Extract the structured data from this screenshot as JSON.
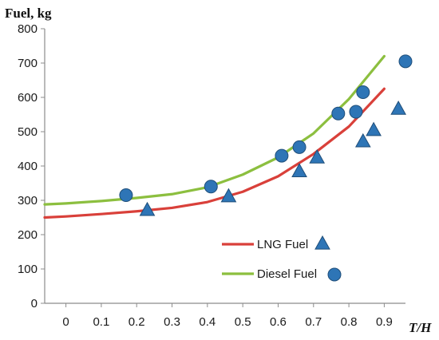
{
  "chart_data": {
    "type": "line",
    "title": "",
    "ylabel": "Fuel, kg",
    "xlabel": "T/H",
    "ylim": [
      0,
      800
    ],
    "xlim": [
      -0.06,
      0.96
    ],
    "yticks": [
      0,
      100,
      200,
      300,
      400,
      500,
      600,
      700,
      800
    ],
    "xticks": [
      0,
      0.1,
      0.2,
      0.3,
      0.4,
      0.5,
      0.6,
      0.7,
      0.8,
      0.9
    ],
    "xtick_labels": [
      "0",
      "0.1",
      "0.2",
      "0.3",
      "0.4",
      "0.5",
      "0.6",
      "0.7",
      "0.8",
      "0.9"
    ],
    "grid": false,
    "legend_position": "bottom-right",
    "lines": [
      {
        "color": "#d9403a",
        "x": [
          -0.06,
          0.0,
          0.1,
          0.2,
          0.3,
          0.4,
          0.5,
          0.6,
          0.7,
          0.8,
          0.9
        ],
        "y": [
          250,
          253,
          260,
          268,
          278,
          295,
          325,
          370,
          435,
          515,
          625
        ]
      },
      {
        "color": "#8cbf3f",
        "x": [
          -0.06,
          0.0,
          0.1,
          0.2,
          0.3,
          0.4,
          0.5,
          0.6,
          0.7,
          0.8,
          0.9
        ],
        "y": [
          288,
          291,
          298,
          307,
          318,
          338,
          375,
          425,
          495,
          595,
          720
        ]
      }
    ],
    "markers": [
      {
        "shape": "triangle",
        "color": "#2e75b6",
        "x": [
          0.23,
          0.46,
          0.66,
          0.71,
          0.84,
          0.87,
          0.94
        ],
        "y": [
          270,
          310,
          383,
          423,
          470,
          503,
          565
        ]
      },
      {
        "shape": "circle",
        "color": "#2e75b6",
        "x": [
          0.17,
          0.41,
          0.61,
          0.66,
          0.77,
          0.82,
          0.84,
          0.96
        ],
        "y": [
          315,
          340,
          430,
          455,
          553,
          558,
          615,
          705
        ]
      }
    ],
    "legend": [
      {
        "label": "LNG Fuel",
        "line_color": "#d9403a",
        "marker": "triangle"
      },
      {
        "label": "Diesel Fuel",
        "line_color": "#8cbf3f",
        "marker": "circle"
      }
    ]
  }
}
